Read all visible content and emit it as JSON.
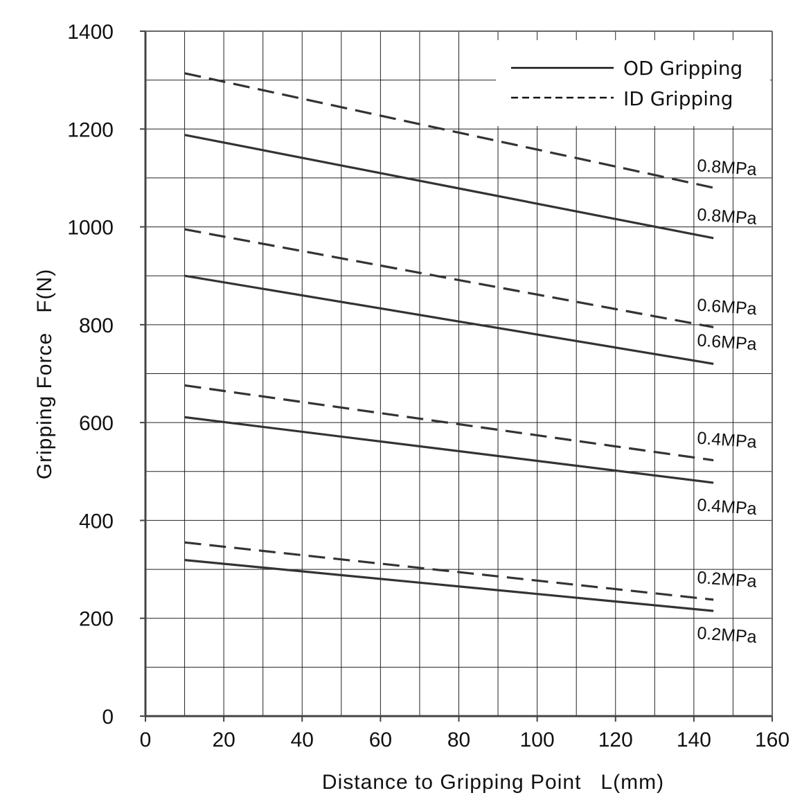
{
  "chart_data": {
    "type": "line",
    "title": "",
    "xlabel": "Distance to Gripping Point   L(mm)",
    "ylabel": "Gripping Force   F(N)",
    "xlim": [
      0,
      160
    ],
    "ylim": [
      0,
      1400
    ],
    "x_ticks": [
      0,
      20,
      40,
      60,
      80,
      100,
      120,
      140,
      160
    ],
    "y_ticks": [
      0,
      200,
      400,
      600,
      800,
      1000,
      1200,
      1400
    ],
    "x_minor_grid_step": 10,
    "y_minor_grid_step": 100,
    "grid": true,
    "legend_position": "top-right",
    "legend": [
      {
        "label": "OD Gripping",
        "style": "solid"
      },
      {
        "label": "ID Gripping",
        "style": "dashed"
      }
    ],
    "line_color": "#333333",
    "series": [
      {
        "group": "OD Gripping",
        "style": "solid",
        "name": "0.8MPa",
        "x": [
          10,
          145
        ],
        "y": [
          1188,
          977
        ]
      },
      {
        "group": "OD Gripping",
        "style": "solid",
        "name": "0.6MPa",
        "x": [
          10,
          145
        ],
        "y": [
          900,
          720
        ]
      },
      {
        "group": "OD Gripping",
        "style": "solid",
        "name": "0.4MPa",
        "x": [
          10,
          145
        ],
        "y": [
          611,
          477
        ]
      },
      {
        "group": "OD Gripping",
        "style": "solid",
        "name": "0.2MPa",
        "x": [
          10,
          145
        ],
        "y": [
          319,
          215
        ]
      },
      {
        "group": "ID Gripping",
        "style": "dashed",
        "name": "0.8MPa",
        "x": [
          10,
          145
        ],
        "y": [
          1314,
          1080
        ]
      },
      {
        "group": "ID Gripping",
        "style": "dashed",
        "name": "0.6MPa",
        "x": [
          10,
          145
        ],
        "y": [
          995,
          795
        ]
      },
      {
        "group": "ID Gripping",
        "style": "dashed",
        "name": "0.4MPa",
        "x": [
          10,
          145
        ],
        "y": [
          676,
          523
        ]
      },
      {
        "group": "ID Gripping",
        "style": "dashed",
        "name": "0.2MPa",
        "x": [
          10,
          145
        ],
        "y": [
          355,
          238
        ]
      }
    ]
  }
}
